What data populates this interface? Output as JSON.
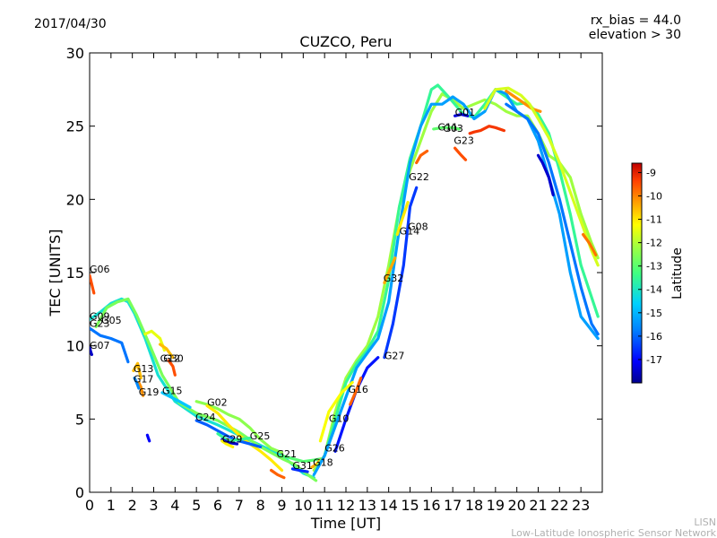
{
  "header": {
    "date": "2017/04/30",
    "title": "CUZCO, Peru",
    "rx_bias": "rx_bias = 44.0",
    "elevation": "elevation > 30"
  },
  "footer": {
    "credit_line1": "LISN",
    "credit_line2": "Low-Latitude Ionospheric Sensor Network"
  },
  "colorbar": {
    "label": "Latitude",
    "min": -18,
    "max": -8.6,
    "ticks": [
      "-9",
      "-10",
      "-11",
      "-12",
      "-13",
      "-14",
      "-15",
      "-16",
      "-17"
    ],
    "colors": [
      "#00008f",
      "#0000ff",
      "#0080ff",
      "#00d0ff",
      "#40ff80",
      "#a0ff40",
      "#ffff00",
      "#ffa000",
      "#ff4000",
      "#c00000"
    ]
  },
  "chart_data": {
    "type": "line",
    "title": "CUZCO, Peru",
    "xlabel": "Time [UT]",
    "ylabel": "TEC [UNITS]",
    "xlim": [
      0,
      24
    ],
    "ylim": [
      0,
      30
    ],
    "xticks": [
      "0",
      "1",
      "2",
      "3",
      "4",
      "5",
      "6",
      "7",
      "8",
      "9",
      "10",
      "11",
      "12",
      "13",
      "14",
      "15",
      "16",
      "17",
      "18",
      "19",
      "20",
      "21",
      "22",
      "23"
    ],
    "yticks": [
      "0",
      "5",
      "10",
      "15",
      "20",
      "25",
      "30"
    ],
    "grid": false,
    "satellite_labels": [
      {
        "prn": "G06",
        "x": 0.0,
        "y": 15.0
      },
      {
        "prn": "G09",
        "x": 0.0,
        "y": 11.8
      },
      {
        "prn": "G05",
        "x": 0.55,
        "y": 11.5
      },
      {
        "prn": "G23",
        "x": 0.0,
        "y": 11.3
      },
      {
        "prn": "G07",
        "x": 0.0,
        "y": 9.8
      },
      {
        "prn": "G13",
        "x": 2.05,
        "y": 8.2
      },
      {
        "prn": "G17",
        "x": 2.05,
        "y": 7.5
      },
      {
        "prn": "G12",
        "x": 3.3,
        "y": 8.9
      },
      {
        "prn": "G30",
        "x": 3.45,
        "y": 8.9
      },
      {
        "prn": "G19",
        "x": 2.3,
        "y": 6.6
      },
      {
        "prn": "G15",
        "x": 3.4,
        "y": 6.7
      },
      {
        "prn": "G02",
        "x": 5.5,
        "y": 5.9
      },
      {
        "prn": "G24",
        "x": 4.95,
        "y": 4.9
      },
      {
        "prn": "G25",
        "x": 7.5,
        "y": 3.6
      },
      {
        "prn": "G29",
        "x": 6.2,
        "y": 3.4
      },
      {
        "prn": "G21",
        "x": 8.75,
        "y": 2.4
      },
      {
        "prn": "G31",
        "x": 9.5,
        "y": 1.6
      },
      {
        "prn": "G18",
        "x": 10.45,
        "y": 1.8
      },
      {
        "prn": "G26",
        "x": 11.0,
        "y": 2.8
      },
      {
        "prn": "G10",
        "x": 11.2,
        "y": 4.8
      },
      {
        "prn": "G16",
        "x": 12.1,
        "y": 6.8
      },
      {
        "prn": "G27",
        "x": 13.8,
        "y": 9.1
      },
      {
        "prn": "G32",
        "x": 13.75,
        "y": 14.4
      },
      {
        "prn": "G14",
        "x": 14.5,
        "y": 17.6
      },
      {
        "prn": "G08",
        "x": 14.9,
        "y": 17.9
      },
      {
        "prn": "G22",
        "x": 14.95,
        "y": 21.3
      },
      {
        "prn": "G01",
        "x": 17.1,
        "y": 25.7
      },
      {
        "prn": "G11",
        "x": 16.3,
        "y": 24.7
      },
      {
        "prn": "G03",
        "x": 16.55,
        "y": 24.6
      },
      {
        "prn": "G23",
        "x": 17.05,
        "y": 23.8
      }
    ],
    "series": [
      {
        "lat": -14.5,
        "x": [
          0,
          0.5,
          1,
          1.5,
          1.8,
          2.1,
          2.6,
          3.2,
          4,
          5,
          6,
          7,
          8,
          9,
          10,
          10.5
        ],
        "y": [
          11.8,
          12.3,
          12.9,
          13.2,
          13.0,
          12.2,
          10.5,
          8.0,
          6.2,
          5.2,
          4.6,
          3.9,
          3.2,
          2.5,
          1.3,
          1.0
        ]
      },
      {
        "lat": -13.2,
        "x": [
          0.3,
          0.8,
          1.3,
          1.8,
          2.2,
          2.8,
          3.4,
          4.2,
          5,
          6,
          7,
          8,
          9,
          9.6,
          10.3,
          10.6
        ],
        "y": [
          11.3,
          12.6,
          13.0,
          13.2,
          12.1,
          10.1,
          8.0,
          6.1,
          5.4,
          4.9,
          4.1,
          3.1,
          2.3,
          1.9,
          1.1,
          0.8
        ]
      },
      {
        "lat": -16.0,
        "x": [
          0,
          0.5,
          1.0,
          1.5,
          1.8
        ],
        "y": [
          11.2,
          10.7,
          10.5,
          10.2,
          8.9
        ]
      },
      {
        "lat": -17.5,
        "x": [
          0,
          0.05,
          0.1
        ],
        "y": [
          9.9,
          9.6,
          9.4
        ]
      },
      {
        "lat": -9.8,
        "x": [
          0,
          0.1,
          0.2
        ],
        "y": [
          14.8,
          14.2,
          13.6
        ]
      },
      {
        "lat": -12.0,
        "x": [
          2.6,
          2.9,
          3.3,
          3.5
        ],
        "y": [
          10.8,
          11.0,
          10.5,
          9.7
        ]
      },
      {
        "lat": -11.0,
        "x": [
          3.3,
          3.6,
          3.9
        ],
        "y": [
          10.1,
          9.8,
          9.2
        ]
      },
      {
        "lat": -9.8,
        "x": [
          3.7,
          3.9,
          4.0
        ],
        "y": [
          9.0,
          8.6,
          8.0
        ]
      },
      {
        "lat": -11.0,
        "x": [
          2.05,
          2.25,
          2.4
        ],
        "y": [
          8.3,
          8.8,
          7.8
        ]
      },
      {
        "lat": -10.5,
        "x": [
          2.3,
          2.4,
          2.5
        ],
        "y": [
          7.5,
          7.2,
          6.6
        ]
      },
      {
        "lat": -15.8,
        "x": [
          2.1,
          2.2,
          2.3
        ],
        "y": [
          7.8,
          7.5,
          7.1
        ]
      },
      {
        "lat": -15.0,
        "x": [
          3.4,
          3.8,
          4.2,
          4.7
        ],
        "y": [
          6.8,
          6.5,
          6.2,
          5.8
        ]
      },
      {
        "lat": -17.0,
        "x": [
          2.7,
          2.75,
          2.8
        ],
        "y": [
          3.9,
          3.7,
          3.5
        ]
      },
      {
        "lat": -13.0,
        "x": [
          5,
          5.5,
          6,
          6.5,
          7,
          7.5,
          8,
          8.5,
          9
        ],
        "y": [
          6.2,
          6.0,
          5.7,
          5.3,
          5.0,
          4.4,
          3.6,
          3.0,
          2.7
        ]
      },
      {
        "lat": -11.5,
        "x": [
          5.5,
          6.0,
          6.5,
          7,
          7.5,
          8,
          8.5,
          9
        ],
        "y": [
          5.9,
          5.4,
          4.6,
          3.9,
          3.3,
          2.8,
          2.2,
          1.5
        ]
      },
      {
        "lat": -10.0,
        "x": [
          8.5,
          8.8,
          9.1
        ],
        "y": [
          1.5,
          1.2,
          1.0
        ]
      },
      {
        "lat": -16.2,
        "x": [
          5,
          5.5,
          6,
          6.5,
          7,
          7.5,
          8
        ],
        "y": [
          4.9,
          4.6,
          4.2,
          3.8,
          3.5,
          3.3,
          3.1
        ]
      },
      {
        "lat": -14.0,
        "x": [
          6,
          6.5,
          7,
          7.5
        ],
        "y": [
          4.0,
          3.5,
          3.6,
          3.7
        ]
      },
      {
        "lat": -17.5,
        "x": [
          6.2,
          6.5,
          6.9
        ],
        "y": [
          3.6,
          3.4,
          3.3
        ]
      },
      {
        "lat": -11.6,
        "x": [
          6.2,
          6.4,
          6.7
        ],
        "y": [
          3.5,
          3.3,
          3.1
        ]
      },
      {
        "lat": -13.6,
        "x": [
          9,
          9.5,
          10,
          10.5,
          10.9
        ],
        "y": [
          2.5,
          2.3,
          2.1,
          2.2,
          2.3
        ]
      },
      {
        "lat": -16.6,
        "x": [
          9.5,
          9.8,
          10.2
        ],
        "y": [
          1.6,
          1.5,
          1.4
        ]
      },
      {
        "lat": -10.8,
        "x": [
          10.4,
          10.6,
          10.8
        ],
        "y": [
          1.7,
          1.9,
          2.2
        ]
      },
      {
        "lat": -12.8,
        "x": [
          10.5,
          11,
          11.5,
          12,
          12.5,
          13,
          13.5,
          14,
          14.5,
          15,
          15.5,
          16,
          16.5,
          17,
          17.5,
          18,
          18.5,
          19,
          19.5,
          20,
          20.5,
          21,
          21.5,
          22,
          22.5,
          23,
          23.5,
          23.8
        ],
        "y": [
          1.5,
          2.5,
          5.5,
          7.8,
          9.0,
          10.0,
          12.0,
          15.5,
          19.5,
          22.0,
          24.0,
          26.0,
          27.2,
          26.8,
          26.2,
          26.5,
          26.8,
          26.5,
          26.0,
          25.7,
          25.7,
          24.5,
          23.0,
          22.5,
          21.5,
          19.0,
          17.0,
          16.0
        ]
      },
      {
        "lat": -14.0,
        "x": [
          11,
          11.5,
          12,
          12.5,
          13,
          13.5,
          14,
          14.5,
          15,
          15.5,
          16,
          16.3,
          16.8,
          17.5,
          18,
          18.5,
          19,
          19.5,
          20,
          20.5,
          21,
          21.5,
          22,
          22.5,
          23,
          23.8
        ],
        "y": [
          2.5,
          5.0,
          7.5,
          8.8,
          9.7,
          11.0,
          14.5,
          19.5,
          22.8,
          25.0,
          27.5,
          27.8,
          27.0,
          25.8,
          25.6,
          26.5,
          27.5,
          27.0,
          26.5,
          26.6,
          25.8,
          24.5,
          22.0,
          19.0,
          15.5,
          12.0
        ]
      },
      {
        "lat": -15.5,
        "x": [
          10.5,
          11,
          11.5,
          12,
          12.5,
          13,
          13.5,
          14,
          14.5,
          15,
          15.5,
          16,
          16.5,
          17,
          17.5,
          18,
          18.5,
          19,
          19.5,
          20,
          20.5,
          21,
          21.5,
          22,
          22.5,
          23,
          23.8
        ],
        "y": [
          1.2,
          2.5,
          4.5,
          6.5,
          8.5,
          9.5,
          10.5,
          13.0,
          18.0,
          22.5,
          25.0,
          26.5,
          26.5,
          27.0,
          26.5,
          25.5,
          26.0,
          27.5,
          27.2,
          26.0,
          25.5,
          24.0,
          21.5,
          19.0,
          15.0,
          12.0,
          10.5
        ]
      },
      {
        "lat": -16.8,
        "x": [
          11.5,
          12,
          12.5,
          13,
          13.5
        ],
        "y": [
          2.8,
          5.0,
          7.0,
          8.5,
          9.2
        ]
      },
      {
        "lat": -11.8,
        "x": [
          10.8,
          11.2,
          11.8,
          12.3
        ],
        "y": [
          3.5,
          5.5,
          6.8,
          7.5
        ]
      },
      {
        "lat": -10.0,
        "x": [
          12.2,
          12.5,
          12.7
        ],
        "y": [
          6.0,
          7.0,
          7.8
        ]
      },
      {
        "lat": -16.5,
        "x": [
          13.8,
          14.2,
          14.7,
          15.0,
          15.3
        ],
        "y": [
          9.2,
          11.5,
          15.5,
          19.5,
          20.8
        ]
      },
      {
        "lat": -10.8,
        "x": [
          13.8,
          14.0,
          14.3
        ],
        "y": [
          14.3,
          15.0,
          16.0
        ]
      },
      {
        "lat": -11.5,
        "x": [
          14.4,
          14.6,
          14.9
        ],
        "y": [
          17.6,
          18.5,
          19.8
        ]
      },
      {
        "lat": -10.0,
        "x": [
          15.3,
          15.5,
          15.8
        ],
        "y": [
          22.5,
          23.0,
          23.3
        ]
      },
      {
        "lat": -9.5,
        "x": [
          17.8,
          18.0,
          18.3,
          18.7,
          19.0,
          19.4
        ],
        "y": [
          24.5,
          24.6,
          24.7,
          25.0,
          24.9,
          24.7
        ]
      },
      {
        "lat": -9.8,
        "x": [
          17.1,
          17.4,
          17.6
        ],
        "y": [
          23.5,
          23.0,
          22.7
        ]
      },
      {
        "lat": -17.3,
        "x": [
          17.1,
          17.4,
          17.7
        ],
        "y": [
          25.7,
          25.8,
          25.7
        ]
      },
      {
        "lat": -10.5,
        "x": [
          19.5,
          19.9,
          20.3,
          20.7,
          21.1
        ],
        "y": [
          27.4,
          27.0,
          26.6,
          26.2,
          26.0
        ]
      },
      {
        "lat": -12.2,
        "x": [
          18.5,
          19.0,
          19.6,
          20.2,
          20.6,
          21.0,
          21.5,
          22.0,
          22.5,
          23.0,
          23.5,
          23.8
        ],
        "y": [
          26.2,
          27.5,
          27.6,
          27.1,
          26.5,
          25.5,
          24.2,
          22.5,
          20.5,
          18.5,
          16.5,
          15.5
        ]
      },
      {
        "lat": -16.0,
        "x": [
          19.5,
          20.0,
          20.5,
          21.0,
          21.5,
          22.0,
          22.5,
          23.0,
          23.5,
          23.8
        ],
        "y": [
          26.5,
          26.0,
          25.5,
          24.5,
          22.5,
          20.0,
          17.0,
          14.0,
          11.5,
          10.8
        ]
      },
      {
        "lat": -17.4,
        "x": [
          21.0,
          21.2,
          21.5,
          21.7
        ],
        "y": [
          23.0,
          22.5,
          21.5,
          20.3
        ]
      },
      {
        "lat": -10.2,
        "x": [
          23.1,
          23.4,
          23.7
        ],
        "y": [
          17.6,
          17.0,
          16.2
        ]
      },
      {
        "lat": -13.5,
        "x": [
          16.1,
          16.5,
          17.0,
          17.3
        ],
        "y": [
          24.8,
          24.9,
          24.9,
          24.8
        ]
      }
    ]
  }
}
